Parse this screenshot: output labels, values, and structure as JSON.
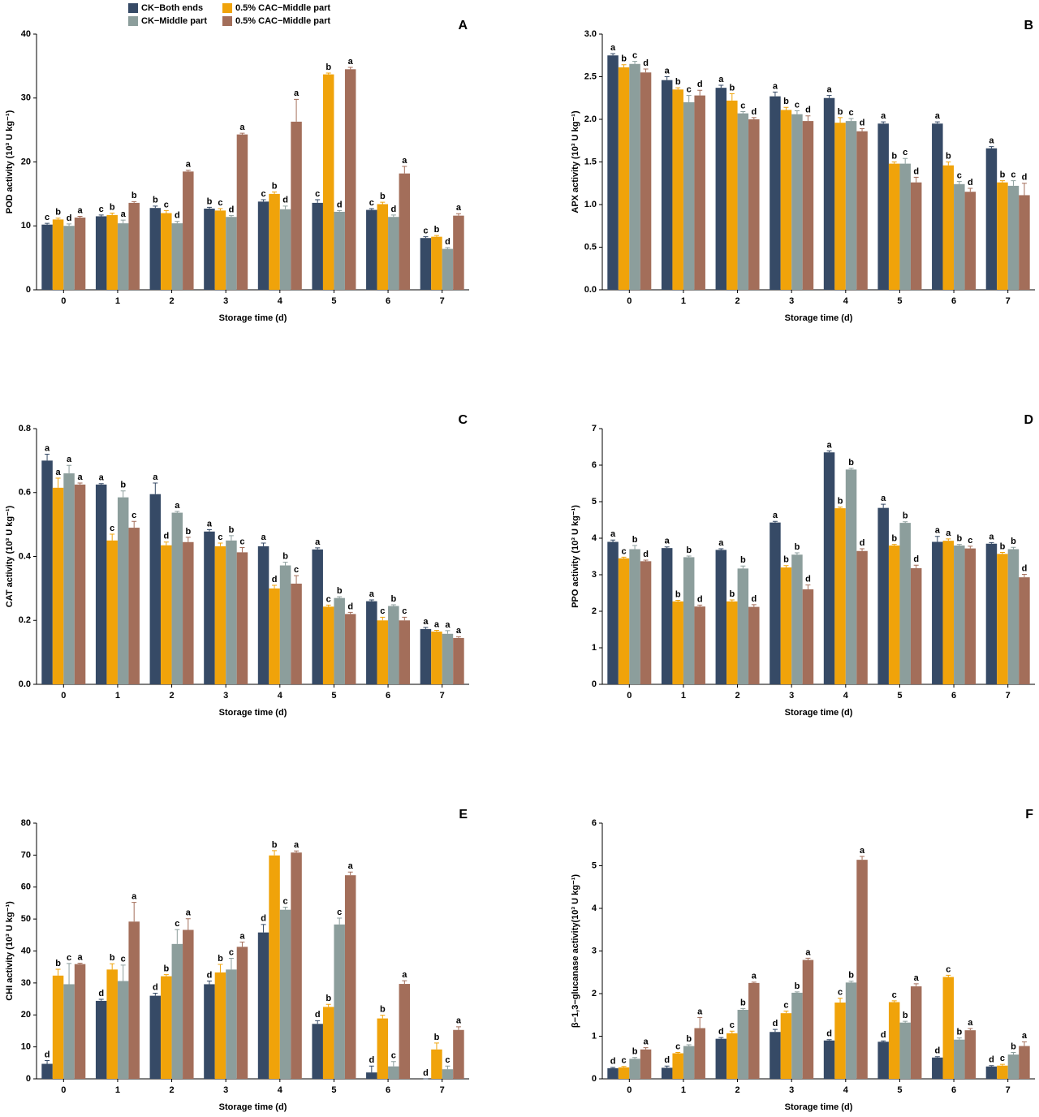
{
  "chart_data": [
    {
      "type": "bar",
      "title": "A",
      "ylabel": "POD activity (10³ U kg⁻¹)",
      "xlabel": "Storage time (d)",
      "categories": [
        "0",
        "1",
        "2",
        "3",
        "4",
        "5",
        "6",
        "7"
      ],
      "ylim": [
        0,
        40
      ],
      "yticks": [
        0,
        10,
        20,
        30,
        40
      ],
      "series": [
        {
          "name": "CK−Both ends",
          "color": "#364a66",
          "values": [
            10.2,
            11.5,
            12.8,
            12.7,
            13.8,
            13.6,
            12.5,
            8.1
          ],
          "errors": [
            0.2,
            0.2,
            0.3,
            0.2,
            0.3,
            0.5,
            0.2,
            0.2
          ],
          "letters": [
            "c",
            "c",
            "b",
            "b",
            "c",
            "c",
            "c",
            "c"
          ]
        },
        {
          "name": "0.5% CAC−Middle part",
          "color": "#f0a30a",
          "values": [
            11.0,
            11.7,
            12.0,
            12.4,
            15.0,
            33.7,
            13.4,
            8.3
          ],
          "errors": [
            0.2,
            0.3,
            0.4,
            0.3,
            0.3,
            0.2,
            0.3,
            0.2
          ],
          "letters": [
            "b",
            "b",
            "c",
            "c",
            "b",
            "b",
            "b",
            "b"
          ]
        },
        {
          "name": "CK−Middle part",
          "color": "#8c9e9c",
          "values": [
            10.0,
            10.4,
            10.4,
            11.4,
            12.6,
            12.2,
            11.4,
            6.4
          ],
          "errors": [
            0.3,
            0.5,
            0.3,
            0.2,
            0.5,
            0.2,
            0.3,
            0.2
          ],
          "letters": [
            "d",
            "a",
            "d",
            "d",
            "d",
            "d",
            "d",
            "d"
          ]
        },
        {
          "name": "0.5% CAC−Middle part",
          "color": "#a36e5a",
          "values": [
            11.3,
            13.6,
            18.5,
            24.3,
            26.3,
            34.5,
            18.2,
            11.6
          ],
          "errors": [
            0.2,
            0.2,
            0.2,
            0.2,
            3.5,
            0.3,
            1.1,
            0.3
          ],
          "letters": [
            "a",
            "b",
            "a",
            "a",
            "a",
            "a",
            "a",
            "a"
          ]
        }
      ]
    },
    {
      "type": "bar",
      "title": "B",
      "ylabel": "APX activity (10³ U kg⁻¹)",
      "xlabel": "Storage time (d)",
      "categories": [
        "0",
        "1",
        "2",
        "3",
        "4",
        "5",
        "6",
        "7"
      ],
      "ylim": [
        0,
        3
      ],
      "yticks": [
        {
          "value": 0,
          "label": "0.0"
        },
        0.5,
        {
          "value": 1,
          "label": "1.0"
        },
        1.5,
        {
          "value": 2,
          "label": "2.0"
        },
        2.5,
        {
          "value": 3,
          "label": "3.0"
        }
      ],
      "series": [
        {
          "color": "#364a66",
          "values": [
            2.75,
            2.46,
            2.37,
            2.27,
            2.25,
            1.95,
            1.95,
            1.66
          ],
          "errors": [
            0.02,
            0.04,
            0.03,
            0.05,
            0.03,
            0.02,
            0.02,
            0.02
          ],
          "letters": [
            "a",
            "a",
            "a",
            "a",
            "a",
            "a",
            "a",
            "a"
          ]
        },
        {
          "color": "#f0a30a",
          "values": [
            2.61,
            2.35,
            2.22,
            2.11,
            1.96,
            1.48,
            1.46,
            1.26
          ],
          "errors": [
            0.03,
            0.02,
            0.08,
            0.03,
            0.06,
            0.02,
            0.04,
            0.02
          ],
          "letters": [
            "b",
            "b",
            "b",
            "b",
            "b",
            "b",
            "b",
            "b"
          ]
        },
        {
          "color": "#8c9e9c",
          "values": [
            2.65,
            2.2,
            2.07,
            2.06,
            1.98,
            1.48,
            1.24,
            1.22
          ],
          "errors": [
            0.03,
            0.08,
            0.02,
            0.04,
            0.03,
            0.06,
            0.03,
            0.06
          ],
          "letters": [
            "c",
            "c",
            "c",
            "c",
            "c",
            "c",
            "c",
            "c"
          ]
        },
        {
          "color": "#a36e5a",
          "values": [
            2.55,
            2.28,
            2.0,
            1.98,
            1.86,
            1.26,
            1.15,
            1.11
          ],
          "errors": [
            0.04,
            0.06,
            0.02,
            0.06,
            0.03,
            0.06,
            0.04,
            0.14
          ],
          "letters": [
            "d",
            "d",
            "d",
            "d",
            "d",
            "d",
            "d",
            "d"
          ]
        }
      ]
    },
    {
      "type": "bar",
      "title": "C",
      "ylabel": "CAT activity (10³ U kg⁻¹)",
      "xlabel": "Storage time (d)",
      "categories": [
        "0",
        "1",
        "2",
        "3",
        "4",
        "5",
        "6",
        "7"
      ],
      "ylim": [
        0,
        0.8
      ],
      "yticks": [
        {
          "value": 0,
          "label": "0.0"
        },
        0.2,
        0.4,
        0.6,
        0.8
      ],
      "series": [
        {
          "color": "#364a66",
          "values": [
            0.7,
            0.625,
            0.595,
            0.478,
            0.432,
            0.422,
            0.26,
            0.173
          ],
          "errors": [
            0.02,
            0.003,
            0.035,
            0.006,
            0.01,
            0.005,
            0.004,
            0.005
          ],
          "letters": [
            "a",
            "a",
            "a",
            "a",
            "a",
            "a",
            "a",
            "a"
          ]
        },
        {
          "color": "#f0a30a",
          "values": [
            0.615,
            0.45,
            0.435,
            0.432,
            0.3,
            0.243,
            0.2,
            0.165
          ],
          "errors": [
            0.03,
            0.02,
            0.01,
            0.01,
            0.01,
            0.005,
            0.01,
            0.004
          ],
          "letters": [
            "a",
            "c",
            "d",
            "c",
            "d",
            "c",
            "c",
            "a"
          ]
        },
        {
          "color": "#8c9e9c",
          "values": [
            0.66,
            0.585,
            0.537,
            0.45,
            0.372,
            0.27,
            0.245,
            0.158
          ],
          "errors": [
            0.025,
            0.02,
            0.004,
            0.015,
            0.01,
            0.004,
            0.004,
            0.01
          ],
          "letters": [
            "a",
            "b",
            "a",
            "b",
            "b",
            "b",
            "b",
            "a"
          ]
        },
        {
          "color": "#a36e5a",
          "values": [
            0.625,
            0.49,
            0.445,
            0.413,
            0.315,
            0.22,
            0.2,
            0.145
          ],
          "errors": [
            0.005,
            0.02,
            0.015,
            0.015,
            0.025,
            0.005,
            0.01,
            0.004
          ],
          "letters": [
            "a",
            "c",
            "b",
            "c",
            "c",
            "d",
            "c",
            "a"
          ]
        }
      ]
    },
    {
      "type": "bar",
      "title": "D",
      "ylabel": "PPO activity (10³ U kg⁻¹)",
      "xlabel": "Storage time (d)",
      "categories": [
        "0",
        "1",
        "2",
        "3",
        "4",
        "5",
        "6",
        "7"
      ],
      "ylim": [
        0,
        7
      ],
      "yticks": [
        0,
        1,
        2,
        3,
        4,
        5,
        6,
        7
      ],
      "series": [
        {
          "color": "#364a66",
          "values": [
            3.9,
            3.73,
            3.68,
            4.43,
            6.35,
            4.83,
            3.9,
            3.85
          ],
          "errors": [
            0.05,
            0.03,
            0.03,
            0.03,
            0.04,
            0.1,
            0.15,
            0.03
          ],
          "letters": [
            "a",
            "a",
            "a",
            "a",
            "a",
            "a",
            "a",
            "a"
          ]
        },
        {
          "color": "#f0a30a",
          "values": [
            3.45,
            2.27,
            2.27,
            3.2,
            4.82,
            3.8,
            3.93,
            3.57
          ],
          "errors": [
            0.03,
            0.03,
            0.04,
            0.05,
            0.03,
            0.03,
            0.05,
            0.04
          ],
          "letters": [
            "c",
            "b",
            "b",
            "b",
            "b",
            "b",
            "a",
            "b"
          ]
        },
        {
          "color": "#8c9e9c",
          "values": [
            3.7,
            3.48,
            3.17,
            3.55,
            5.88,
            4.42,
            3.8,
            3.7
          ],
          "errors": [
            0.1,
            0.03,
            0.07,
            0.05,
            0.03,
            0.03,
            0.03,
            0.05
          ],
          "letters": [
            "b",
            "b",
            "b",
            "b",
            "b",
            "b",
            "b",
            "b"
          ]
        },
        {
          "color": "#a36e5a",
          "values": [
            3.37,
            2.13,
            2.12,
            2.6,
            3.65,
            3.18,
            3.72,
            2.93
          ],
          "errors": [
            0.03,
            0.04,
            0.06,
            0.12,
            0.06,
            0.08,
            0.06,
            0.08
          ],
          "letters": [
            "d",
            "d",
            "d",
            "d",
            "d",
            "d",
            "c",
            "d"
          ]
        }
      ]
    },
    {
      "type": "bar",
      "title": "E",
      "ylabel": "CHI activity (10³ U kg⁻¹)",
      "xlabel": "Storage time (d)",
      "categories": [
        "0",
        "1",
        "2",
        "3",
        "4",
        "5",
        "6",
        "7"
      ],
      "ylim": [
        0,
        80
      ],
      "yticks": [
        0,
        10,
        20,
        30,
        40,
        50,
        60,
        70,
        80
      ],
      "series": [
        {
          "color": "#364a66",
          "values": [
            4.7,
            24.4,
            26.0,
            29.6,
            45.8,
            17.2,
            2.0,
            0
          ],
          "errors": [
            1,
            0.5,
            0.8,
            1,
            2.5,
            1,
            2,
            0
          ],
          "letters": [
            "d",
            "d",
            "d",
            "d",
            "d",
            "d",
            "d",
            "d"
          ]
        },
        {
          "color": "#f0a30a",
          "values": [
            32.3,
            34.2,
            32.1,
            33.3,
            69.9,
            22.5,
            18.9,
            9.2
          ],
          "errors": [
            2,
            1.8,
            0.5,
            2.5,
            1.5,
            0.8,
            1,
            2
          ],
          "letters": [
            "b",
            "b",
            "b",
            "b",
            "b",
            "b",
            "b",
            "b"
          ]
        },
        {
          "color": "#8c9e9c",
          "values": [
            29.6,
            30.6,
            42.2,
            34.2,
            52.9,
            48.3,
            3.9,
            3.0
          ],
          "errors": [
            6.5,
            5,
            4.5,
            3.5,
            0.8,
            2,
            1.5,
            1
          ],
          "letters": [
            "c",
            "c",
            "c",
            "c",
            "c",
            "c",
            "c",
            "c"
          ]
        },
        {
          "color": "#a36e5a",
          "values": [
            35.9,
            49.2,
            46.6,
            41.3,
            70.8,
            63.7,
            29.7,
            15.3
          ],
          "errors": [
            0.3,
            6,
            3.5,
            1.5,
            0.5,
            1,
            1,
            1
          ],
          "letters": [
            "a",
            "a",
            "a",
            "a",
            "a",
            "a",
            "a",
            "a"
          ]
        }
      ]
    },
    {
      "type": "bar",
      "title": "F",
      "ylabel": "β−1,3−glucanase activity(10³ U kg⁻¹)",
      "xlabel": "Storage time (d)",
      "categories": [
        "0",
        "1",
        "2",
        "3",
        "4",
        "5",
        "6",
        "7"
      ],
      "ylim": [
        0,
        6
      ],
      "yticks": [
        0,
        1,
        2,
        3,
        4,
        5,
        6
      ],
      "series": [
        {
          "color": "#364a66",
          "values": [
            0.25,
            0.26,
            0.94,
            1.1,
            0.9,
            0.87,
            0.5,
            0.29
          ],
          "errors": [
            0.02,
            0.04,
            0.03,
            0.06,
            0.02,
            0.02,
            0.02,
            0.02
          ],
          "letters": [
            "d",
            "d",
            "d",
            "d",
            "d",
            "d",
            "d",
            "d"
          ]
        },
        {
          "color": "#f0a30a",
          "values": [
            0.27,
            0.6,
            1.07,
            1.54,
            1.79,
            1.8,
            2.39,
            0.31
          ],
          "errors": [
            0.02,
            0.02,
            0.05,
            0.05,
            0.1,
            0.03,
            0.04,
            0.03
          ],
          "letters": [
            "c",
            "c",
            "c",
            "c",
            "c",
            "c",
            "c",
            "c"
          ]
        },
        {
          "color": "#8c9e9c",
          "values": [
            0.47,
            0.77,
            1.62,
            2.02,
            2.26,
            1.32,
            0.92,
            0.57
          ],
          "errors": [
            0.03,
            0.03,
            0.03,
            0.02,
            0.03,
            0.03,
            0.04,
            0.05
          ],
          "letters": [
            "b",
            "b",
            "b",
            "b",
            "b",
            "b",
            "b",
            "b"
          ]
        },
        {
          "color": "#a36e5a",
          "values": [
            0.69,
            1.19,
            2.25,
            2.79,
            5.14,
            2.17,
            1.14,
            0.77
          ],
          "errors": [
            0.04,
            0.25,
            0.02,
            0.04,
            0.08,
            0.06,
            0.04,
            0.1
          ],
          "letters": [
            "a",
            "a",
            "a",
            "a",
            "a",
            "a",
            "a",
            "a"
          ]
        }
      ]
    }
  ]
}
